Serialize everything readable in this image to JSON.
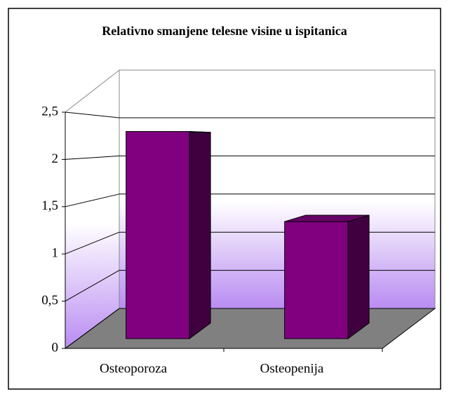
{
  "chart_data": {
    "type": "bar3d",
    "title": "Relativno smanjene telesne visine u ispitanica",
    "categories": [
      "Osteoporoza",
      "Osteopenija"
    ],
    "values": [
      2.3,
      1.3
    ],
    "color": "#800080",
    "ylim": [
      0,
      2.5
    ],
    "yticks": [
      0,
      {
        "value": 0.5,
        "label": "0,5"
      },
      1,
      {
        "value": 1.5,
        "label": "1,5"
      },
      2,
      {
        "value": 2.5,
        "label": "2,5"
      }
    ],
    "grid": true
  }
}
